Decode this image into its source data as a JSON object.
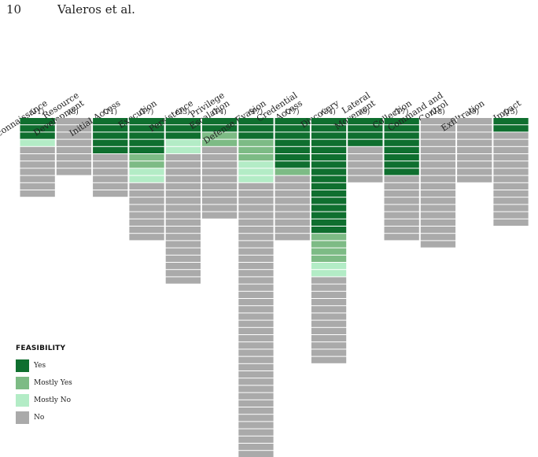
{
  "header": {
    "page_number": "10",
    "running_head": "Valeros et al."
  },
  "legend": {
    "title": "FEASIBILITY",
    "items": [
      {
        "key": "yes",
        "label": "Yes",
        "color": "#0f6f2f"
      },
      {
        "key": "mostly_yes",
        "label": "Mostly Yes",
        "color": "#7dbb85"
      },
      {
        "key": "mostly_no",
        "label": "Mostly No",
        "color": "#b3ecc6"
      },
      {
        "key": "no",
        "label": "No",
        "color": "#aaaaaa"
      }
    ]
  },
  "chart_data": {
    "type": "bar",
    "stacking": "stacked-units",
    "categories": [
      {
        "label": [
          "Reconnaissance"
        ],
        "count": "(11)",
        "composition": {
          "yes": 3,
          "mostly_yes": 0,
          "mostly_no": 1,
          "no": 7
        }
      },
      {
        "label": [
          "Resource",
          "Development"
        ],
        "count": "(8)",
        "composition": {
          "yes": 0,
          "mostly_yes": 0,
          "mostly_no": 0,
          "no": 8
        }
      },
      {
        "label": [
          "Initial Access"
        ],
        "count": "(11)",
        "composition": {
          "yes": 5,
          "mostly_yes": 0,
          "mostly_no": 0,
          "no": 6
        }
      },
      {
        "label": [
          "Execution"
        ],
        "count": "(17)",
        "composition": {
          "yes": 5,
          "mostly_yes": 2,
          "mostly_no": 2,
          "no": 8
        }
      },
      {
        "label": [
          "Persistence"
        ],
        "count": "(23)",
        "composition": {
          "yes": 3,
          "mostly_yes": 0,
          "mostly_no": 2,
          "no": 18
        }
      },
      {
        "label": [
          "Privilege",
          "Escalation"
        ],
        "count": "(14)",
        "composition": {
          "yes": 2,
          "mostly_yes": 2,
          "mostly_no": 0,
          "no": 10
        }
      },
      {
        "label": [
          "Defense Evasion"
        ],
        "count": "(47)",
        "composition": {
          "yes": 3,
          "mostly_yes": 3,
          "mostly_no": 3,
          "no": 38
        }
      },
      {
        "label": [
          "Credential",
          "Access"
        ],
        "count": "(17)",
        "composition": {
          "yes": 7,
          "mostly_yes": 1,
          "mostly_no": 0,
          "no": 9
        }
      },
      {
        "label": [
          "Discovery"
        ],
        "count": "(34)",
        "composition": {
          "yes": 16,
          "mostly_yes": 4,
          "mostly_no": 2,
          "no": 12
        }
      },
      {
        "label": [
          "Lateral",
          "Movement"
        ],
        "count": "(9)",
        "composition": {
          "yes": 4,
          "mostly_yes": 0,
          "mostly_no": 0,
          "no": 5
        }
      },
      {
        "label": [
          "Collection"
        ],
        "count": "(17)",
        "composition": {
          "yes": 8,
          "mostly_yes": 0,
          "mostly_no": 0,
          "no": 9
        }
      },
      {
        "label": [
          "Command and",
          "Control"
        ],
        "count": "(18)",
        "composition": {
          "yes": 0,
          "mostly_yes": 0,
          "mostly_no": 0,
          "no": 18
        }
      },
      {
        "label": [
          "Exfiltration"
        ],
        "count": "(9)",
        "composition": {
          "yes": 0,
          "mostly_yes": 0,
          "mostly_no": 0,
          "no": 9
        }
      },
      {
        "label": [
          "Impact"
        ],
        "count": "(15)",
        "composition": {
          "yes": 2,
          "mostly_yes": 0,
          "mostly_no": 0,
          "no": 13
        }
      }
    ],
    "stack_order": [
      "yes",
      "mostly_yes",
      "mostly_no",
      "no"
    ]
  }
}
